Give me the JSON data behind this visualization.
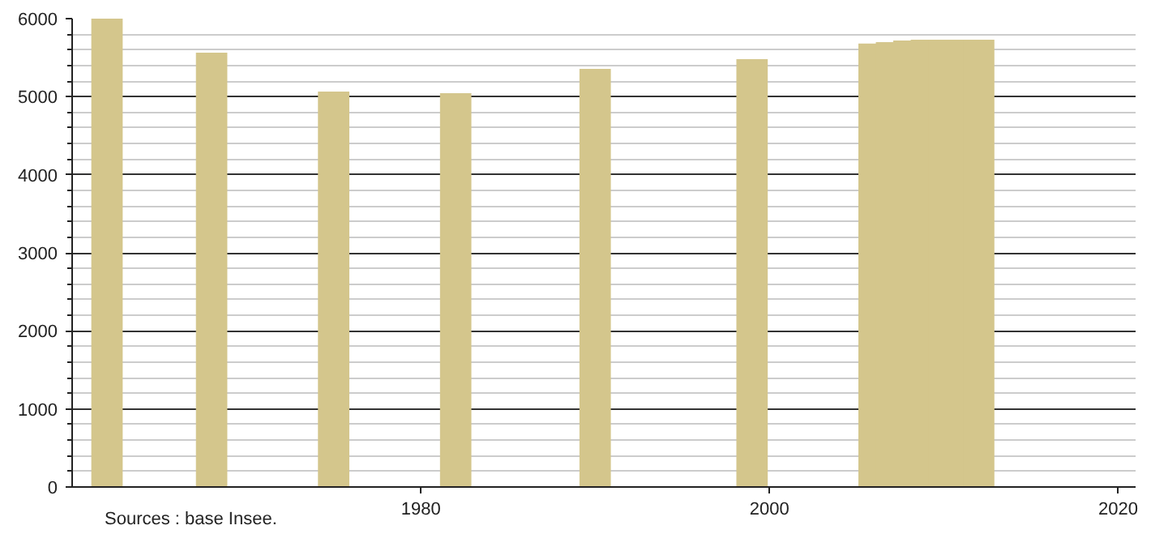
{
  "chart_data": {
    "type": "bar",
    "x": [
      1962,
      1968,
      1975,
      1982,
      1990,
      1999,
      2006,
      2007,
      2008,
      2009,
      2010,
      2011,
      2012
    ],
    "values": [
      6000,
      5564,
      5065,
      5045,
      5356,
      5480,
      5680,
      5700,
      5720,
      5730,
      5730,
      5730,
      5730
    ],
    "color": "#d4c68c",
    "xlim": [
      1960,
      2021
    ],
    "xticks": [
      1980,
      2000,
      2020
    ],
    "ylim": [
      0,
      6000
    ],
    "yticks": [
      0,
      1000,
      2000,
      3000,
      4000,
      5000,
      6000
    ],
    "grid": "y",
    "annotations": [
      "Sources : base Insee."
    ]
  }
}
